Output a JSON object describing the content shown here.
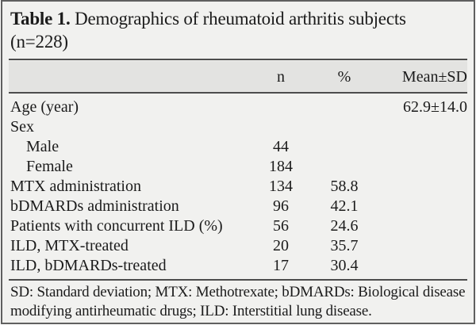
{
  "title": {
    "label": "Table 1.",
    "text": "Demographics of rheumatoid arthritis subjects (n=228)"
  },
  "table": {
    "columns": {
      "n": "n",
      "pct": "%",
      "mean": "Mean±SD"
    },
    "rows": [
      {
        "label": "Age (year)",
        "indent": false,
        "n": "",
        "pct": "",
        "mean": "62.9±14.0"
      },
      {
        "label": "Sex",
        "indent": false,
        "n": "",
        "pct": "",
        "mean": ""
      },
      {
        "label": "Male",
        "indent": true,
        "n": "44",
        "pct": "",
        "mean": ""
      },
      {
        "label": "Female",
        "indent": true,
        "n": "184",
        "pct": "",
        "mean": ""
      },
      {
        "label": "MTX administration",
        "indent": false,
        "n": "134",
        "pct": "58.8",
        "mean": ""
      },
      {
        "label": "bDMARDs administration",
        "indent": false,
        "n": "96",
        "pct": "42.1",
        "mean": ""
      },
      {
        "label": "Patients with concurrent ILD (%)",
        "indent": false,
        "n": "56",
        "pct": "24.6",
        "mean": ""
      },
      {
        "label": "ILD, MTX-treated",
        "indent": false,
        "n": "20",
        "pct": "35.7",
        "mean": ""
      },
      {
        "label": "ILD, bDMARDs-treated",
        "indent": false,
        "n": "17",
        "pct": "30.4",
        "mean": ""
      }
    ]
  },
  "footnote": "SD: Standard deviation; MTX: Methotrexate; bDMARDs: Biological disease modifying antirheumatic drugs; ILD: Interstitial lung disease.",
  "colors": {
    "page_background": "#f1f1ef",
    "header_band": "#e3e3e1",
    "rule": "#4d4d4d",
    "border": "#5f5f5f",
    "text": "#1b1b1b"
  }
}
